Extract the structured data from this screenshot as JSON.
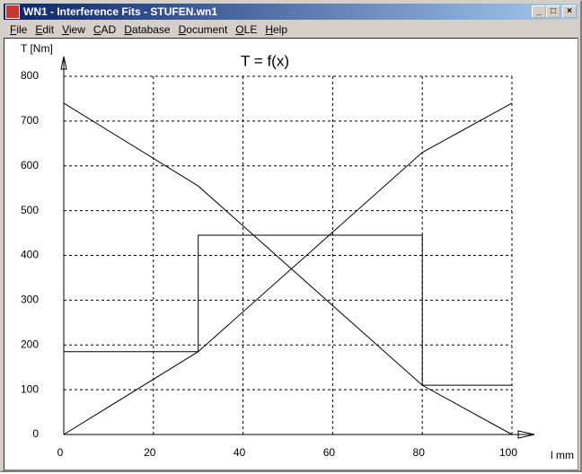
{
  "window": {
    "title": "WN1 - Interference Fits - STUFEN.wn1",
    "menu": [
      "File",
      "Edit",
      "View",
      "CAD",
      "Database",
      "Document",
      "OLE",
      "Help"
    ]
  },
  "chart_data": {
    "type": "line",
    "title": "T = f(x)",
    "y_label": "T [Nm]",
    "x_label": "l mm",
    "xlim": [
      0,
      100
    ],
    "ylim": [
      0,
      800
    ],
    "xticks": [
      0,
      20,
      40,
      60,
      80,
      100
    ],
    "yticks": [
      0,
      100,
      200,
      300,
      400,
      500,
      600,
      700,
      800
    ],
    "grid": true,
    "series": [
      {
        "color": "#000000",
        "x": [
          0,
          30,
          80,
          100
        ],
        "values": [
          740,
          555,
          110,
          0
        ]
      },
      {
        "color": "#000000",
        "x": [
          0,
          30,
          80,
          100
        ],
        "values": [
          0,
          185,
          630,
          740
        ]
      },
      {
        "color": "#000000",
        "x": [
          0,
          30,
          30,
          80,
          80,
          100
        ],
        "values": [
          185,
          185,
          445,
          445,
          110,
          110
        ]
      }
    ]
  }
}
